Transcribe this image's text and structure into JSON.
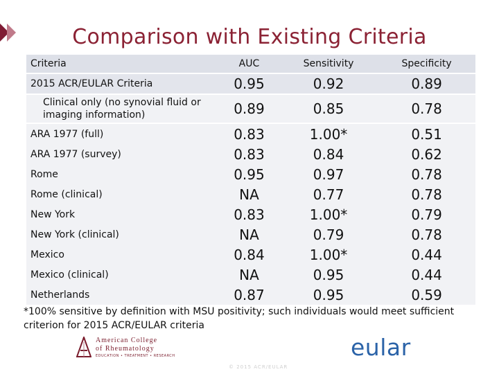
{
  "title": "Comparison with Existing Criteria",
  "table": {
    "headers": [
      "Criteria",
      "AUC",
      "Sensitivity",
      "Specificity"
    ],
    "rows": [
      {
        "name": "2015 ACR/EULAR Criteria",
        "auc": "0.95",
        "sens": "0.92",
        "spec": "0.89"
      },
      {
        "name": "Clinical only (no synovial fluid or imaging information)",
        "auc": "0.89",
        "sens": "0.85",
        "spec": "0.78"
      },
      {
        "name": "ARA 1977 (full)",
        "auc": "0.83",
        "sens": "1.00*",
        "spec": "0.51"
      },
      {
        "name": "ARA 1977 (survey)",
        "auc": "0.83",
        "sens": "0.84",
        "spec": "0.62"
      },
      {
        "name": "Rome",
        "auc": "0.95",
        "sens": "0.97",
        "spec": "0.78"
      },
      {
        "name": "Rome (clinical)",
        "auc": "NA",
        "sens": "0.77",
        "spec": "0.78"
      },
      {
        "name": "New York",
        "auc": "0.83",
        "sens": "1.00*",
        "spec": "0.79"
      },
      {
        "name": "New York (clinical)",
        "auc": "NA",
        "sens": "0.79",
        "spec": "0.78"
      },
      {
        "name": "Mexico",
        "auc": "0.84",
        "sens": "1.00*",
        "spec": "0.44"
      },
      {
        "name": "Mexico (clinical)",
        "auc": "NA",
        "sens": "0.95",
        "spec": "0.44"
      },
      {
        "name": "Netherlands",
        "auc": "0.87",
        "sens": "0.95",
        "spec": "0.59"
      }
    ]
  },
  "footnote": "*100% sensitive by definition with MSU positivity; such individuals would meet sufficient criterion for 2015 ACR/EULAR criteria",
  "logo": {
    "line1": "American College",
    "line2": "of Rheumatology",
    "line3": "EDUCATION • TREATMENT • RESEARCH"
  },
  "eular_logo": "eular",
  "copyright": "© 2015 ACR/EULAR",
  "colors": {
    "title": "#8b2234",
    "accent": "#7f1b33",
    "eular": "#2b63a8",
    "header_bg": "#dde0e8"
  }
}
